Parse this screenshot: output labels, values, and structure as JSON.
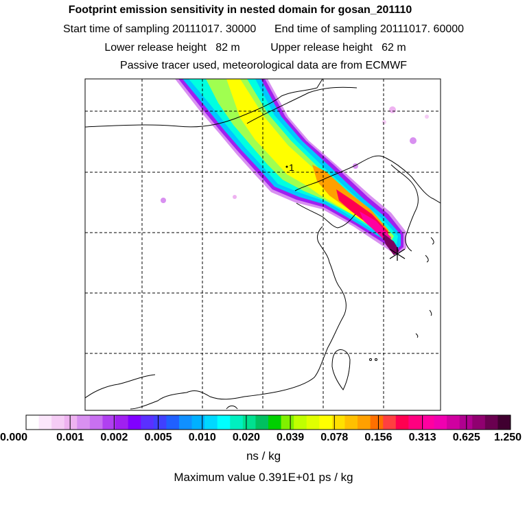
{
  "header": {
    "title": "Footprint emission sensitivity in nested domain for gosan_201110",
    "start_label": "Start time of sampling 20111017. 30000",
    "end_label": "End time of sampling 20111017. 60000",
    "lower_label": "Lower release height   82 m",
    "upper_label": "Upper release height   62 m",
    "tracer_note": "Passive tracer used, meteorological data are from ECMWF"
  },
  "map": {
    "site_marker_label": "1",
    "grid": true,
    "plume_colors": [
      "#d890f0",
      "#a020f0",
      "#00c8ff",
      "#00ffe0",
      "#a0ff50",
      "#ffff00",
      "#ffa000",
      "#ff0050",
      "#ff00a0"
    ]
  },
  "colorbar": {
    "labels": [
      "0.000",
      "0.001",
      "0.002",
      "0.005",
      "0.010",
      "0.020",
      "0.039",
      "0.078",
      "0.156",
      "0.313",
      "0.625",
      "1.250"
    ],
    "colors": [
      "#ffffff",
      "#fbe6fb",
      "#f5ccf5",
      "#eeb2f0",
      "#d890f0",
      "#c870f0",
      "#b040f0",
      "#a020f0",
      "#8000ff",
      "#5a30ff",
      "#4040ff",
      "#2060ff",
      "#1090ff",
      "#00b0ff",
      "#00d8ff",
      "#00ffff",
      "#00f0c0",
      "#00e090",
      "#00c060",
      "#00d000",
      "#80f000",
      "#c0ff00",
      "#e0ff00",
      "#ffff00",
      "#ffe000",
      "#ffc000",
      "#ffa000",
      "#ff7000",
      "#ff4040",
      "#ff0050",
      "#ff0080",
      "#ff00a0",
      "#f000b0",
      "#d000a0",
      "#b00090",
      "#900070",
      "#6a0050",
      "#400030"
    ],
    "units": "ns / kg",
    "max_value": "Maximum value  0.391E+01 ps / kg"
  }
}
